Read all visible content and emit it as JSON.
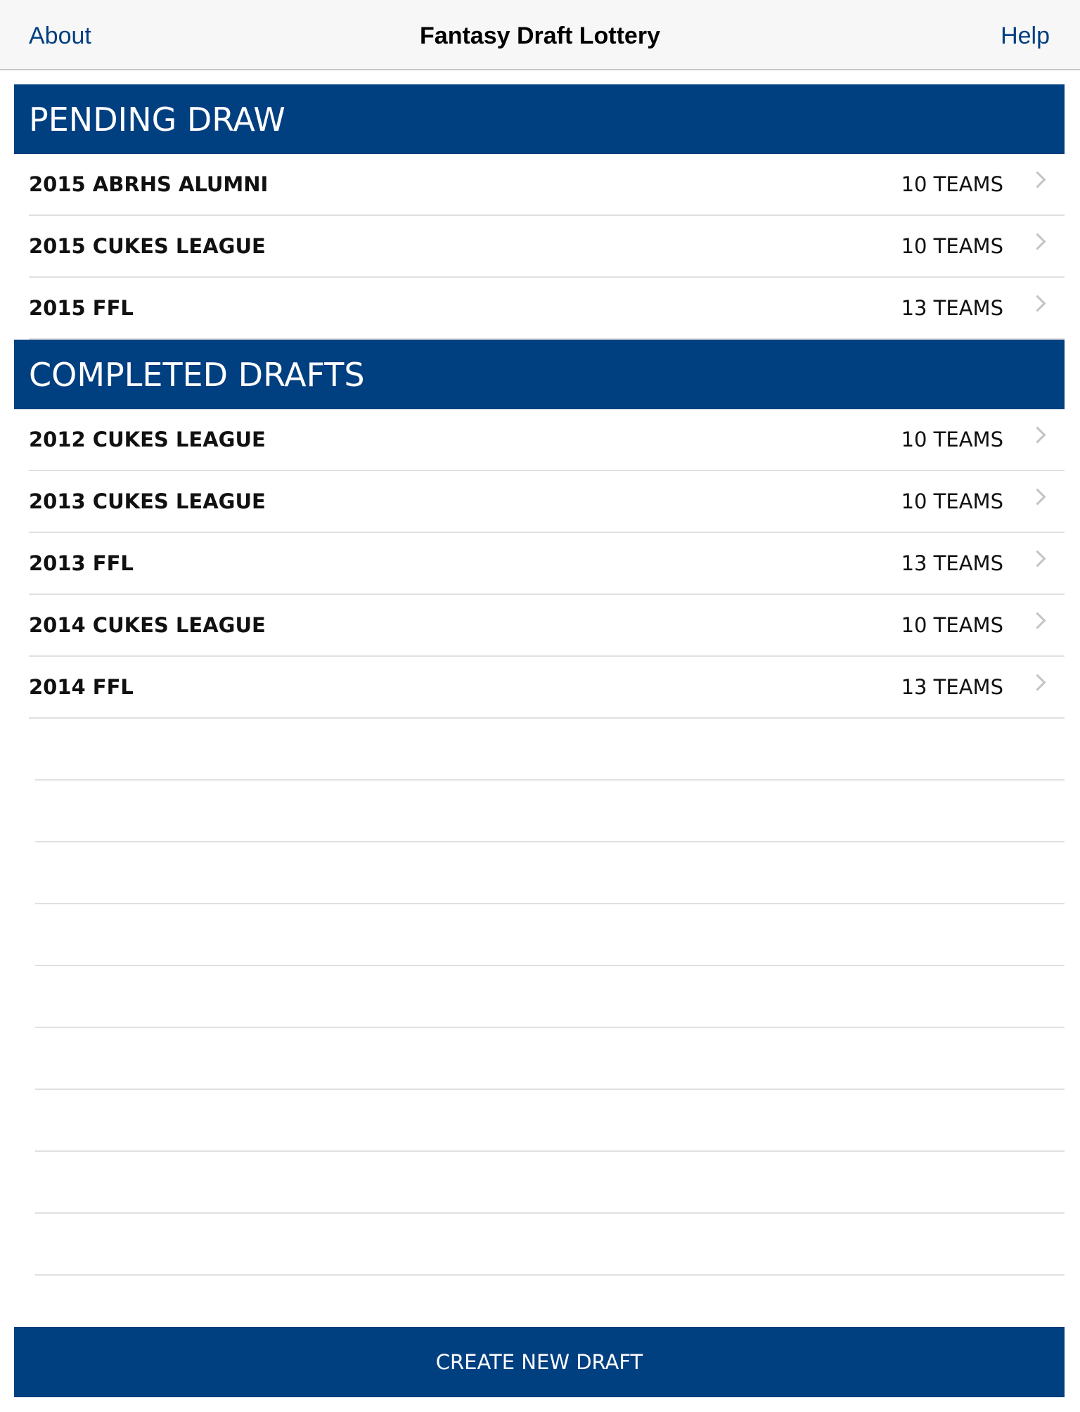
{
  "nav": {
    "left": "About",
    "title": "Fantasy Draft Lottery",
    "right": "Help"
  },
  "sections": [
    {
      "title": "PENDING DRAW",
      "items": [
        {
          "name": "2015 ABRHS ALUMNI",
          "count": "10 TEAMS"
        },
        {
          "name": "2015 CUKES LEAGUE",
          "count": "10 TEAMS"
        },
        {
          "name": "2015 FFL",
          "count": "13 TEAMS"
        }
      ]
    },
    {
      "title": "COMPLETED DRAFTS",
      "items": [
        {
          "name": "2012 CUKES LEAGUE",
          "count": "10 TEAMS"
        },
        {
          "name": "2013 CUKES LEAGUE",
          "count": "10 TEAMS"
        },
        {
          "name": "2013 FFL",
          "count": "13 TEAMS"
        },
        {
          "name": "2014 CUKES LEAGUE",
          "count": "10 TEAMS"
        },
        {
          "name": "2014 FFL",
          "count": "13 TEAMS"
        }
      ]
    }
  ],
  "create_button": "CREATE NEW DRAFT",
  "colors": {
    "accent": "#003f80",
    "chevron": "#c4c4c4"
  },
  "icons": {
    "row_disclosure": "chevron-right-icon"
  }
}
